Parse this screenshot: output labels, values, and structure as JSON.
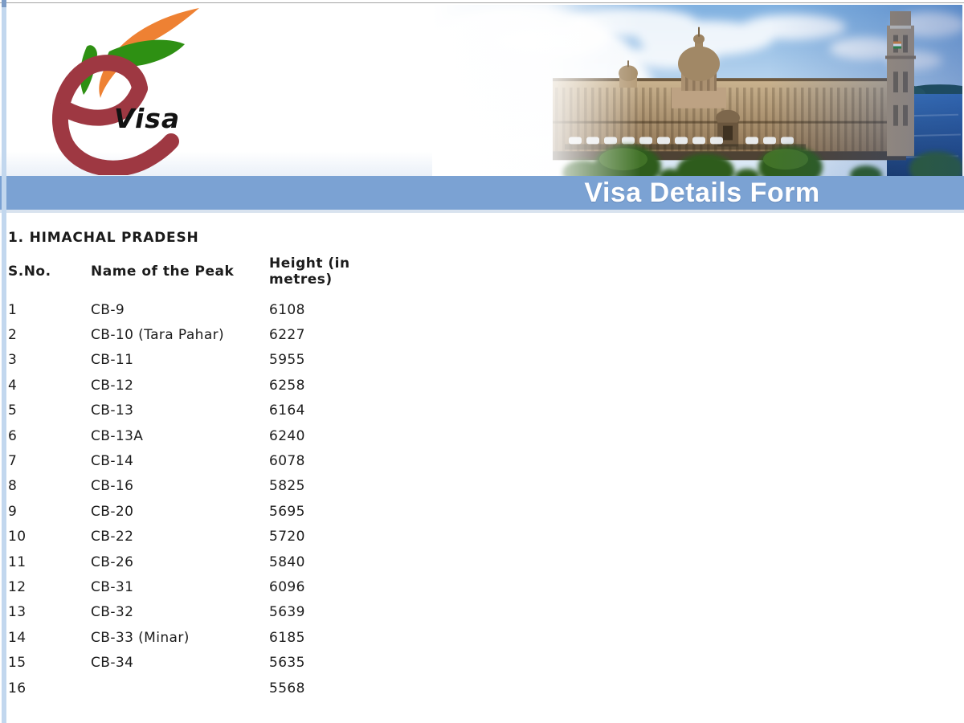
{
  "logo": {
    "e_letter": "e",
    "visa_text": "Visa"
  },
  "title_bar": {
    "text": "Visa Details Form"
  },
  "section": {
    "heading": "1. HIMACHAL PRADESH"
  },
  "table": {
    "columns": [
      "S.No.",
      "Name of the Peak",
      "Height (in metres)"
    ],
    "rows": [
      {
        "sno": "1",
        "name": "CB-9",
        "height": "6108"
      },
      {
        "sno": "2",
        "name": "CB-10 (Tara Pahar)",
        "height": "6227"
      },
      {
        "sno": "3",
        "name": "CB-11",
        "height": "5955"
      },
      {
        "sno": "4",
        "name": "CB-12",
        "height": "6258"
      },
      {
        "sno": "5",
        "name": "CB-13",
        "height": "6164"
      },
      {
        "sno": "6",
        "name": "CB-13A",
        "height": "6240"
      },
      {
        "sno": "7",
        "name": "CB-14",
        "height": "6078"
      },
      {
        "sno": "8",
        "name": "CB-16",
        "height": "5825"
      },
      {
        "sno": "9",
        "name": "CB-20",
        "height": "5695"
      },
      {
        "sno": "10",
        "name": "CB-22",
        "height": "5720"
      },
      {
        "sno": "11",
        "name": "CB-26",
        "height": "5840"
      },
      {
        "sno": "12",
        "name": "CB-31",
        "height": "6096"
      },
      {
        "sno": "13",
        "name": "CB-32",
        "height": "5639"
      },
      {
        "sno": "14",
        "name": "CB-33 (Minar)",
        "height": "6185"
      },
      {
        "sno": "15",
        "name": "CB-34",
        "height": "5635"
      },
      {
        "sno": "16",
        "name": "",
        "height": "5568"
      }
    ]
  },
  "colors": {
    "bar_blue": "#7ba2d3",
    "left_strip": "#c2d7ee",
    "logo_maroon": "#9e3842",
    "logo_orange": "#ee8133",
    "logo_green": "#2e9013",
    "sky_blue": "#85b3e2",
    "building_tan": "#b3997a",
    "water_blue": "#1d4f93"
  }
}
